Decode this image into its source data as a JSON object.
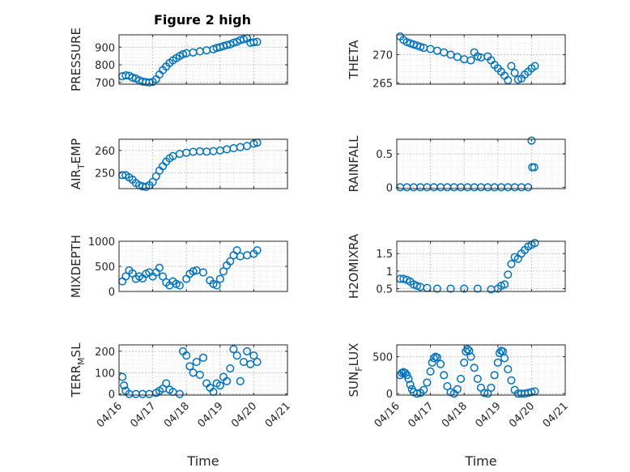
{
  "figure": {
    "title": "Figure 2 high",
    "xlabel": "Time"
  },
  "colors": {
    "marker": "#0072BD",
    "axis": "#262626",
    "grid": "#BDBDBD",
    "minor_grid": "#DDDDDD"
  },
  "x_tick_labels": [
    "04/16",
    "04/17",
    "04/18",
    "04/19",
    "04/20",
    "04/21"
  ],
  "chart_data": [
    {
      "type": "scatter",
      "ylabel": "PRESSURE",
      "title": "Figure 2 high",
      "xlim": [
        "04/16",
        "04/21"
      ],
      "ylim": [
        690,
        970
      ],
      "yticks": [
        700,
        800,
        900
      ],
      "ytick_labels": [
        "700",
        "800",
        "900"
      ],
      "grid": true,
      "points": [
        [
          0.1,
          735
        ],
        [
          0.2,
          740
        ],
        [
          0.3,
          738
        ],
        [
          0.4,
          728
        ],
        [
          0.5,
          722
        ],
        [
          0.6,
          712
        ],
        [
          0.7,
          705
        ],
        [
          0.8,
          702
        ],
        [
          0.9,
          700
        ],
        [
          1.0,
          703
        ],
        [
          1.1,
          718
        ],
        [
          1.2,
          745
        ],
        [
          1.3,
          770
        ],
        [
          1.4,
          790
        ],
        [
          1.5,
          810
        ],
        [
          1.6,
          825
        ],
        [
          1.7,
          838
        ],
        [
          1.8,
          850
        ],
        [
          1.9,
          860
        ],
        [
          2.0,
          866
        ],
        [
          2.2,
          870
        ],
        [
          2.4,
          876
        ],
        [
          2.6,
          882
        ],
        [
          2.8,
          888
        ],
        [
          2.9,
          896
        ],
        [
          3.0,
          900
        ],
        [
          3.1,
          906
        ],
        [
          3.2,
          912
        ],
        [
          3.3,
          916
        ],
        [
          3.4,
          925
        ],
        [
          3.5,
          930
        ],
        [
          3.6,
          940
        ],
        [
          3.7,
          945
        ],
        [
          3.8,
          950
        ],
        [
          3.9,
          925
        ],
        [
          4.0,
          928
        ],
        [
          4.1,
          930
        ]
      ]
    },
    {
      "type": "scatter",
      "ylabel": "THETA",
      "xlim": [
        "04/16",
        "04/21"
      ],
      "ylim": [
        264.8,
        273.5
      ],
      "yticks": [
        265,
        270
      ],
      "ytick_labels": [
        "265",
        "270"
      ],
      "grid": true,
      "points": [
        [
          0.1,
          273.2
        ],
        [
          0.2,
          272.6
        ],
        [
          0.3,
          272.2
        ],
        [
          0.4,
          272.0
        ],
        [
          0.5,
          271.8
        ],
        [
          0.6,
          271.6
        ],
        [
          0.7,
          271.4
        ],
        [
          0.8,
          271.2
        ],
        [
          1.0,
          271.0
        ],
        [
          1.2,
          270.7
        ],
        [
          1.4,
          270.4
        ],
        [
          1.6,
          270.0
        ],
        [
          1.8,
          269.6
        ],
        [
          2.0,
          269.2
        ],
        [
          2.2,
          269.0
        ],
        [
          2.3,
          270.4
        ],
        [
          2.4,
          269.7
        ],
        [
          2.5,
          269.5
        ],
        [
          2.7,
          269.7
        ],
        [
          2.8,
          269.0
        ],
        [
          2.9,
          268.2
        ],
        [
          3.0,
          267.6
        ],
        [
          3.1,
          267.0
        ],
        [
          3.2,
          266.3
        ],
        [
          3.3,
          265.5
        ],
        [
          3.4,
          268.0
        ],
        [
          3.5,
          266.8
        ],
        [
          3.6,
          265.6
        ],
        [
          3.7,
          265.8
        ],
        [
          3.8,
          266.5
        ],
        [
          3.9,
          267.0
        ],
        [
          4.0,
          267.6
        ],
        [
          4.1,
          268.0
        ]
      ]
    },
    {
      "type": "scatter",
      "ylabel": "AIR_TEMP",
      "ylabel_display": [
        "AIR",
        "T",
        "EMP"
      ],
      "xlim": [
        "04/16",
        "04/21"
      ],
      "ylim": [
        243,
        265
      ],
      "yticks": [
        250,
        260
      ],
      "ytick_labels": [
        "250",
        "260"
      ],
      "grid": true,
      "points": [
        [
          0.1,
          249
        ],
        [
          0.2,
          249
        ],
        [
          0.3,
          248
        ],
        [
          0.4,
          247
        ],
        [
          0.5,
          245.5
        ],
        [
          0.6,
          244.5
        ],
        [
          0.7,
          244
        ],
        [
          0.8,
          243.8
        ],
        [
          0.9,
          244.5
        ],
        [
          1.0,
          246
        ],
        [
          1.1,
          248.5
        ],
        [
          1.2,
          251
        ],
        [
          1.3,
          253
        ],
        [
          1.4,
          255
        ],
        [
          1.5,
          256.5
        ],
        [
          1.6,
          257.5
        ],
        [
          1.8,
          258.5
        ],
        [
          2.0,
          259
        ],
        [
          2.2,
          259.4
        ],
        [
          2.4,
          259.6
        ],
        [
          2.6,
          259.5
        ],
        [
          2.8,
          259.7
        ],
        [
          3.0,
          260
        ],
        [
          3.2,
          260.5
        ],
        [
          3.4,
          261
        ],
        [
          3.6,
          261.5
        ],
        [
          3.8,
          262
        ],
        [
          4.0,
          263
        ],
        [
          4.1,
          263.5
        ]
      ]
    },
    {
      "type": "scatter",
      "ylabel": "RAINFALL",
      "xlim": [
        "04/16",
        "04/21"
      ],
      "ylim": [
        -0.02,
        0.72
      ],
      "yticks": [
        0,
        0.5
      ],
      "ytick_labels": [
        "0",
        "0.5"
      ],
      "grid": true,
      "points": [
        [
          0.1,
          0
        ],
        [
          0.3,
          0
        ],
        [
          0.5,
          0
        ],
        [
          0.7,
          0
        ],
        [
          0.9,
          0
        ],
        [
          1.1,
          0
        ],
        [
          1.3,
          0
        ],
        [
          1.5,
          0
        ],
        [
          1.7,
          0
        ],
        [
          1.9,
          0
        ],
        [
          2.1,
          0
        ],
        [
          2.3,
          0
        ],
        [
          2.5,
          0
        ],
        [
          2.7,
          0
        ],
        [
          2.9,
          0
        ],
        [
          3.1,
          0
        ],
        [
          3.3,
          0
        ],
        [
          3.5,
          0
        ],
        [
          3.7,
          0
        ],
        [
          3.9,
          0
        ],
        [
          4.0,
          0.7
        ],
        [
          4.02,
          0.3
        ],
        [
          4.08,
          0.3
        ]
      ]
    },
    {
      "type": "scatter",
      "ylabel": "MIXDEPTH",
      "xlim": [
        "04/16",
        "04/21"
      ],
      "ylim": [
        0,
        1000
      ],
      "yticks": [
        0,
        500,
        1000
      ],
      "ytick_labels": [
        "0",
        "500",
        "1000"
      ],
      "grid": true,
      "points": [
        [
          0.1,
          200
        ],
        [
          0.2,
          300
        ],
        [
          0.3,
          420
        ],
        [
          0.4,
          360
        ],
        [
          0.5,
          250
        ],
        [
          0.6,
          300
        ],
        [
          0.7,
          260
        ],
        [
          0.8,
          350
        ],
        [
          0.9,
          380
        ],
        [
          1.0,
          300
        ],
        [
          1.1,
          380
        ],
        [
          1.2,
          470
        ],
        [
          1.3,
          300
        ],
        [
          1.4,
          180
        ],
        [
          1.5,
          120
        ],
        [
          1.6,
          200
        ],
        [
          1.7,
          150
        ],
        [
          1.8,
          120
        ],
        [
          2.0,
          250
        ],
        [
          2.1,
          350
        ],
        [
          2.2,
          400
        ],
        [
          2.3,
          420
        ],
        [
          2.5,
          380
        ],
        [
          2.7,
          220
        ],
        [
          2.8,
          150
        ],
        [
          2.9,
          120
        ],
        [
          3.0,
          250
        ],
        [
          3.1,
          400
        ],
        [
          3.2,
          520
        ],
        [
          3.3,
          600
        ],
        [
          3.4,
          720
        ],
        [
          3.5,
          820
        ],
        [
          3.6,
          700
        ],
        [
          3.8,
          720
        ],
        [
          4.0,
          750
        ],
        [
          4.1,
          820
        ]
      ]
    },
    {
      "type": "scatter",
      "ylabel": "H2OMIXRA",
      "xlim": [
        "04/16",
        "04/21"
      ],
      "ylim": [
        0.42,
        1.85
      ],
      "yticks": [
        0.5,
        1,
        1.5
      ],
      "ytick_labels": [
        "0.5",
        "1",
        "1.5"
      ],
      "grid": true,
      "points": [
        [
          0.1,
          0.78
        ],
        [
          0.2,
          0.78
        ],
        [
          0.3,
          0.75
        ],
        [
          0.4,
          0.7
        ],
        [
          0.5,
          0.62
        ],
        [
          0.6,
          0.58
        ],
        [
          0.7,
          0.55
        ],
        [
          0.9,
          0.52
        ],
        [
          1.2,
          0.5
        ],
        [
          1.6,
          0.5
        ],
        [
          2.0,
          0.5
        ],
        [
          2.4,
          0.5
        ],
        [
          2.8,
          0.48
        ],
        [
          3.0,
          0.5
        ],
        [
          3.1,
          0.58
        ],
        [
          3.2,
          0.62
        ],
        [
          3.3,
          0.9
        ],
        [
          3.4,
          1.2
        ],
        [
          3.5,
          1.4
        ],
        [
          3.6,
          1.35
        ],
        [
          3.7,
          1.5
        ],
        [
          3.8,
          1.6
        ],
        [
          3.9,
          1.7
        ],
        [
          4.0,
          1.75
        ],
        [
          4.1,
          1.8
        ]
      ]
    },
    {
      "type": "scatter",
      "ylabel": "TERR_MSL",
      "ylabel_display": [
        "TERR",
        "M",
        "SL"
      ],
      "xlim": [
        "04/16",
        "04/21"
      ],
      "ylim": [
        -5,
        230
      ],
      "yticks": [
        0,
        100,
        200
      ],
      "ytick_labels": [
        "0",
        "100",
        "200"
      ],
      "grid": true,
      "points": [
        [
          0.1,
          80
        ],
        [
          0.15,
          40
        ],
        [
          0.2,
          15
        ],
        [
          0.3,
          0
        ],
        [
          0.5,
          0
        ],
        [
          0.7,
          0
        ],
        [
          0.9,
          0
        ],
        [
          1.1,
          5
        ],
        [
          1.2,
          15
        ],
        [
          1.3,
          25
        ],
        [
          1.4,
          50
        ],
        [
          1.5,
          20
        ],
        [
          1.6,
          10
        ],
        [
          1.8,
          0
        ],
        [
          1.9,
          200
        ],
        [
          2.0,
          180
        ],
        [
          2.1,
          130
        ],
        [
          2.2,
          100
        ],
        [
          2.3,
          150
        ],
        [
          2.4,
          90
        ],
        [
          2.5,
          170
        ],
        [
          2.6,
          50
        ],
        [
          2.7,
          30
        ],
        [
          2.8,
          10
        ],
        [
          2.9,
          50
        ],
        [
          3.0,
          40
        ],
        [
          3.1,
          80
        ],
        [
          3.2,
          60
        ],
        [
          3.3,
          120
        ],
        [
          3.4,
          210
        ],
        [
          3.5,
          180
        ],
        [
          3.6,
          60
        ],
        [
          3.7,
          150
        ],
        [
          3.8,
          200
        ],
        [
          3.9,
          140
        ],
        [
          4.0,
          180
        ],
        [
          4.1,
          150
        ]
      ]
    },
    {
      "type": "scatter",
      "ylabel": "SUN_FLUX",
      "ylabel_display": [
        "SUN",
        "F",
        "LUX"
      ],
      "xlim": [
        "04/16",
        "04/21"
      ],
      "ylim": [
        -20,
        660
      ],
      "yticks": [
        0,
        500
      ],
      "ytick_labels": [
        "0",
        "500"
      ],
      "grid": true,
      "points": [
        [
          0.1,
          250
        ],
        [
          0.15,
          280
        ],
        [
          0.2,
          290
        ],
        [
          0.25,
          280
        ],
        [
          0.3,
          250
        ],
        [
          0.35,
          200
        ],
        [
          0.4,
          120
        ],
        [
          0.45,
          60
        ],
        [
          0.5,
          20
        ],
        [
          0.6,
          0
        ],
        [
          0.7,
          10
        ],
        [
          0.8,
          50
        ],
        [
          0.9,
          150
        ],
        [
          1.0,
          300
        ],
        [
          1.05,
          420
        ],
        [
          1.1,
          480
        ],
        [
          1.15,
          500
        ],
        [
          1.2,
          490
        ],
        [
          1.3,
          400
        ],
        [
          1.4,
          250
        ],
        [
          1.5,
          100
        ],
        [
          1.6,
          20
        ],
        [
          1.7,
          0
        ],
        [
          1.8,
          60
        ],
        [
          1.9,
          200
        ],
        [
          2.0,
          420
        ],
        [
          2.05,
          570
        ],
        [
          2.1,
          600
        ],
        [
          2.15,
          580
        ],
        [
          2.2,
          500
        ],
        [
          2.3,
          350
        ],
        [
          2.4,
          200
        ],
        [
          2.5,
          80
        ],
        [
          2.6,
          10
        ],
        [
          2.7,
          0
        ],
        [
          2.8,
          80
        ],
        [
          2.9,
          250
        ],
        [
          3.0,
          420
        ],
        [
          3.05,
          550
        ],
        [
          3.1,
          580
        ],
        [
          3.15,
          570
        ],
        [
          3.2,
          480
        ],
        [
          3.3,
          330
        ],
        [
          3.4,
          180
        ],
        [
          3.5,
          50
        ],
        [
          3.6,
          0
        ],
        [
          3.7,
          0
        ],
        [
          3.8,
          0
        ],
        [
          3.9,
          10
        ],
        [
          4.0,
          20
        ],
        [
          4.1,
          30
        ]
      ]
    }
  ]
}
